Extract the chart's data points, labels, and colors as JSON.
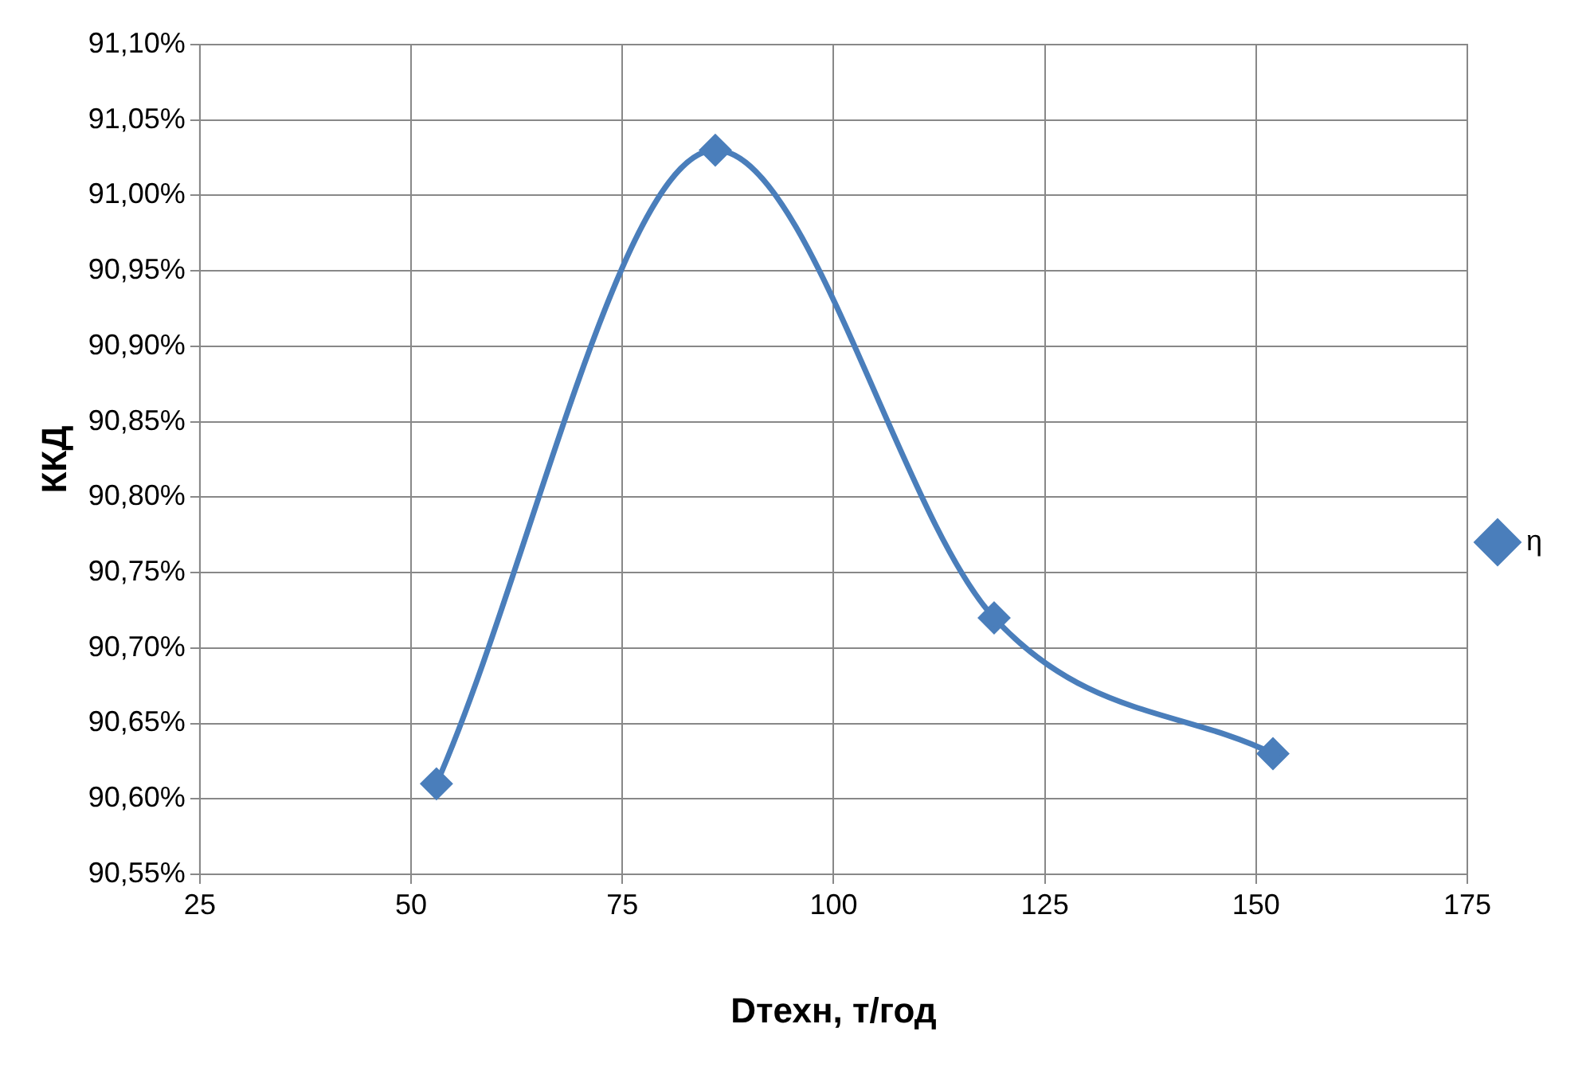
{
  "chart_data": {
    "type": "line",
    "xlabel": "Dтехн, т/год",
    "ylabel": "ККД",
    "x": [
      53,
      86,
      119,
      152
    ],
    "series": [
      {
        "name": "η",
        "color": "#4a7ebb",
        "values": [
          90.61,
          91.03,
          90.72,
          90.63
        ]
      }
    ],
    "xlim": [
      25,
      175
    ],
    "xticks": [
      25,
      50,
      75,
      100,
      125,
      150,
      175
    ],
    "ylim": [
      90.55,
      91.1
    ],
    "yticks": [
      {
        "value": 90.55,
        "label": "90,55%"
      },
      {
        "value": 90.6,
        "label": "90,60%"
      },
      {
        "value": 90.65,
        "label": "90,65%"
      },
      {
        "value": 90.7,
        "label": "90,70%"
      },
      {
        "value": 90.75,
        "label": "90,75%"
      },
      {
        "value": 90.8,
        "label": "90,80%"
      },
      {
        "value": 90.85,
        "label": "90,85%"
      },
      {
        "value": 90.9,
        "label": "90,90%"
      },
      {
        "value": 90.95,
        "label": "90,95%"
      },
      {
        "value": 91.0,
        "label": "91,00%"
      },
      {
        "value": 91.05,
        "label": "91,05%"
      },
      {
        "value": 91.1,
        "label": "91,10%"
      }
    ],
    "grid": true,
    "legend": "right",
    "marker": "diamond",
    "line_style": "solid"
  }
}
